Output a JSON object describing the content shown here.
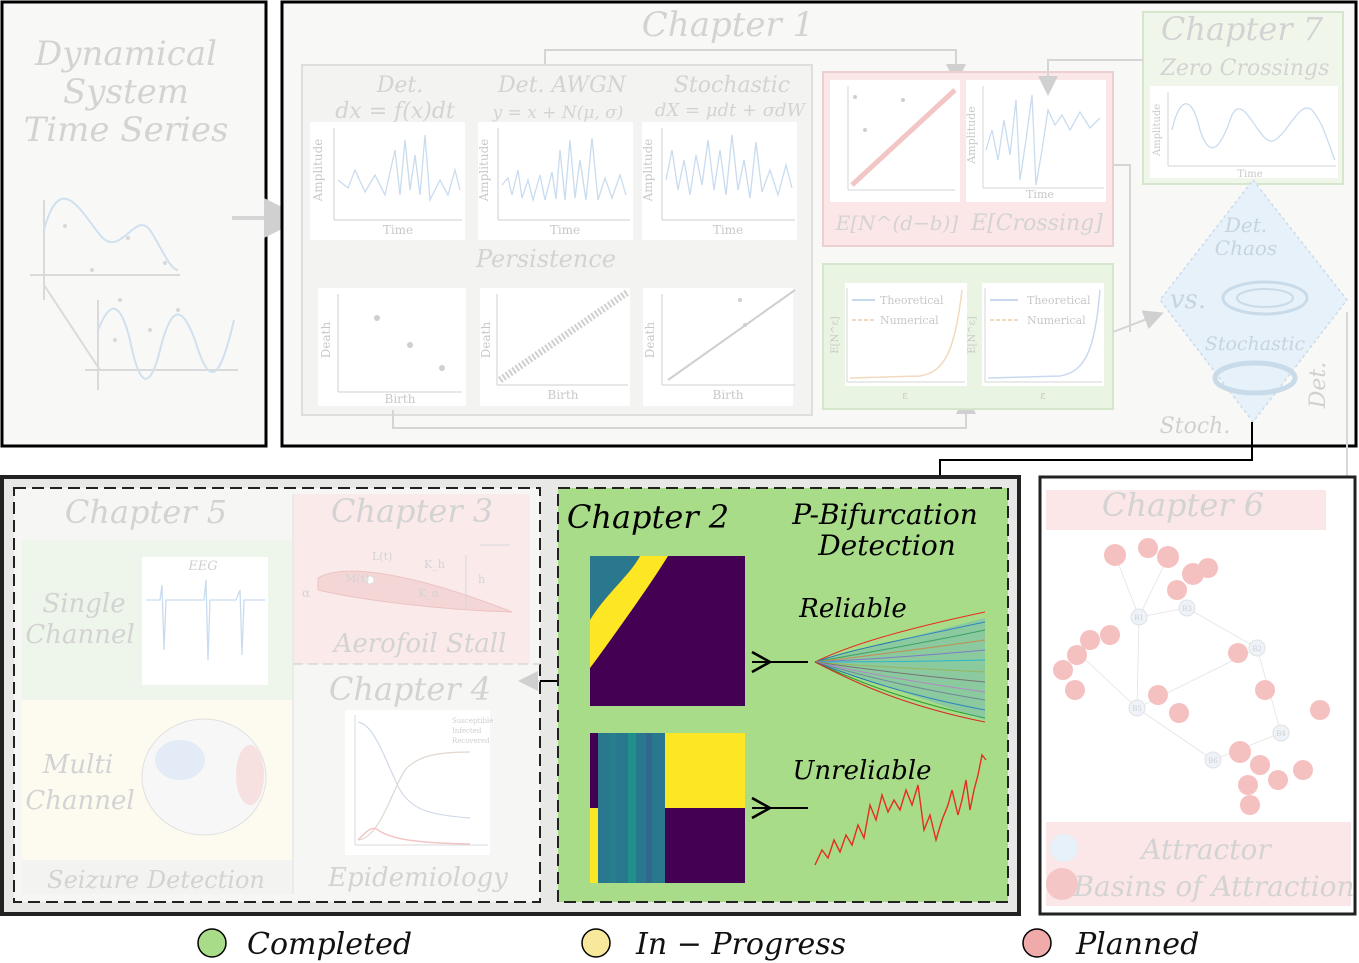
{
  "colors": {
    "completed": "#a8dc88",
    "in_progress": "#f7e89b",
    "planned": "#f0aaaa",
    "faded_green": "#e7f5e0",
    "faded_pink": "#fbe3e3",
    "faded_blue": "#e2f0fa",
    "faded_yellow": "#fdf8e6",
    "viridis_dark": "#440154",
    "viridis_yellow": "#fde725",
    "viridis_teal": "#2a788e",
    "red": "#e82c1f"
  },
  "left_panel": {
    "title_lines": [
      "Dynamical",
      "System",
      "Time Series"
    ]
  },
  "chapter1": {
    "title": "Chapter 1",
    "cols": [
      {
        "type": "Det.",
        "eq": "dx = f(x)dt"
      },
      {
        "type": "Det. AWGN",
        "eq": "y = x + N(μ, σ)"
      },
      {
        "type": "Stochastic",
        "eq": "dX = μdt + σdW"
      }
    ],
    "axis_time": "Time",
    "axis_amp": "Amplitude",
    "persistence": "Persistence",
    "axis_birth": "Birth",
    "axis_death": "Death",
    "expect_n": "E[N^(d−b)]",
    "expect_crossing": "E[Crossing]",
    "legend_theoretical": "Theoretical",
    "legend_numerical": "Numerical",
    "eps": "ε",
    "en_label": "E[N^ε]"
  },
  "chapter7": {
    "title": "Chapter 7",
    "subtitle": "Zero Crossings",
    "axis_time": "Time",
    "axis_amp": "Amplitude"
  },
  "diamond": {
    "det_chaos": [
      "Det.",
      "Chaos"
    ],
    "vs": "vs.",
    "stochastic": "Stochastic",
    "stoch": "Stoch.",
    "det": "Det."
  },
  "chapter5": {
    "title": "Chapter 5",
    "eeg": "EEG",
    "single": [
      "Single",
      "Channel"
    ],
    "multi": [
      "Multi",
      "Channel"
    ],
    "footer": "Seizure Detection"
  },
  "chapter3": {
    "title": "Chapter 3",
    "footer": "Aerofoil Stall",
    "labels": [
      "L(t)",
      "M(t)",
      "α",
      "K_h",
      "h",
      "K_α"
    ]
  },
  "chapter4": {
    "title": "Chapter 4",
    "footer": "Epidemiology",
    "legend": [
      "Susceptible",
      "Infected",
      "Recovered"
    ]
  },
  "chapter2": {
    "title": "Chapter 2",
    "subtitle_lines": [
      "P-Bifurcation",
      "Detection"
    ],
    "reliable": "Reliable",
    "unreliable": "Unreliable"
  },
  "chapter6": {
    "title": "Chapter 6",
    "footer_lines": [
      "Attractor",
      "Basins of Attraction"
    ],
    "node_labels": [
      "B1",
      "B2",
      "B3",
      "B4",
      "B5",
      "B6"
    ]
  },
  "legend": [
    {
      "label": "Completed",
      "color": "#a8dc88"
    },
    {
      "label": "In − Progress",
      "color": "#f7e89b"
    },
    {
      "label": "Planned",
      "color": "#f0aaaa"
    }
  ]
}
